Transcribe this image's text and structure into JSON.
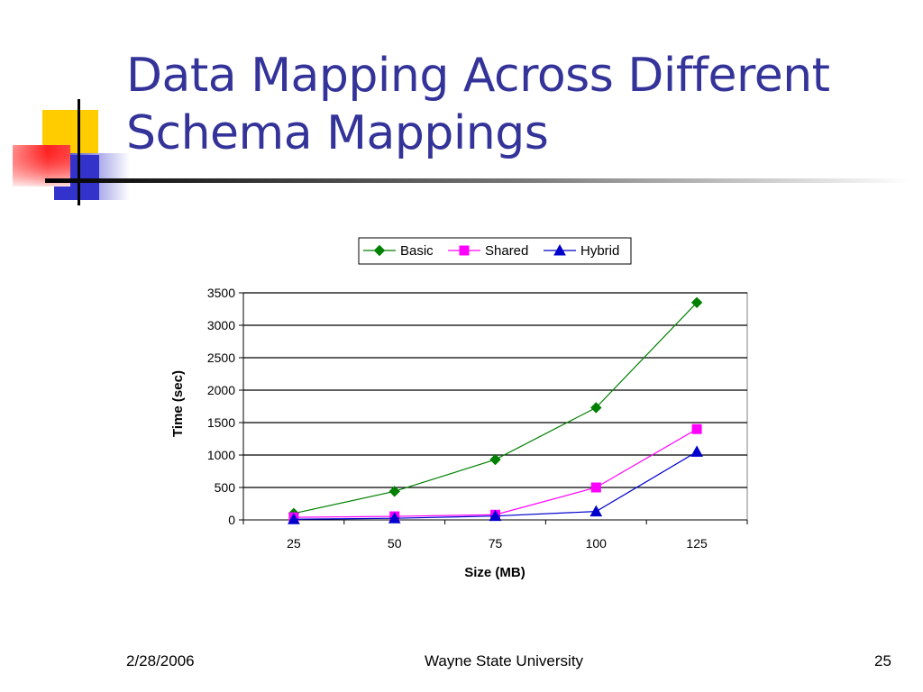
{
  "slide": {
    "title_line1": "Data Mapping Across Different",
    "title_line2": "Schema Mappings",
    "footer_date": "2/28/2006",
    "footer_center": "Wayne State University",
    "footer_page": "25"
  },
  "colors": {
    "title": "#333399",
    "basic": "#008000",
    "shared": "#FF00FF",
    "hybrid": "#0000CC"
  },
  "chart_data": {
    "type": "line",
    "categories": [
      "25",
      "50",
      "75",
      "100",
      "125"
    ],
    "series": [
      {
        "name": "Basic",
        "values": [
          100,
          440,
          930,
          1730,
          3350
        ],
        "marker": "diamond"
      },
      {
        "name": "Shared",
        "values": [
          40,
          55,
          80,
          500,
          1400
        ],
        "marker": "square"
      },
      {
        "name": "Hybrid",
        "values": [
          10,
          25,
          60,
          130,
          1050
        ],
        "marker": "triangle"
      }
    ],
    "xlabel": "Size (MB)",
    "ylabel": "Time (sec)",
    "ylim": [
      0,
      3500
    ],
    "yticks": [
      "0",
      "500",
      "1000",
      "1500",
      "2000",
      "2500",
      "3000",
      "3500"
    ],
    "grid": true,
    "legend": "top"
  }
}
